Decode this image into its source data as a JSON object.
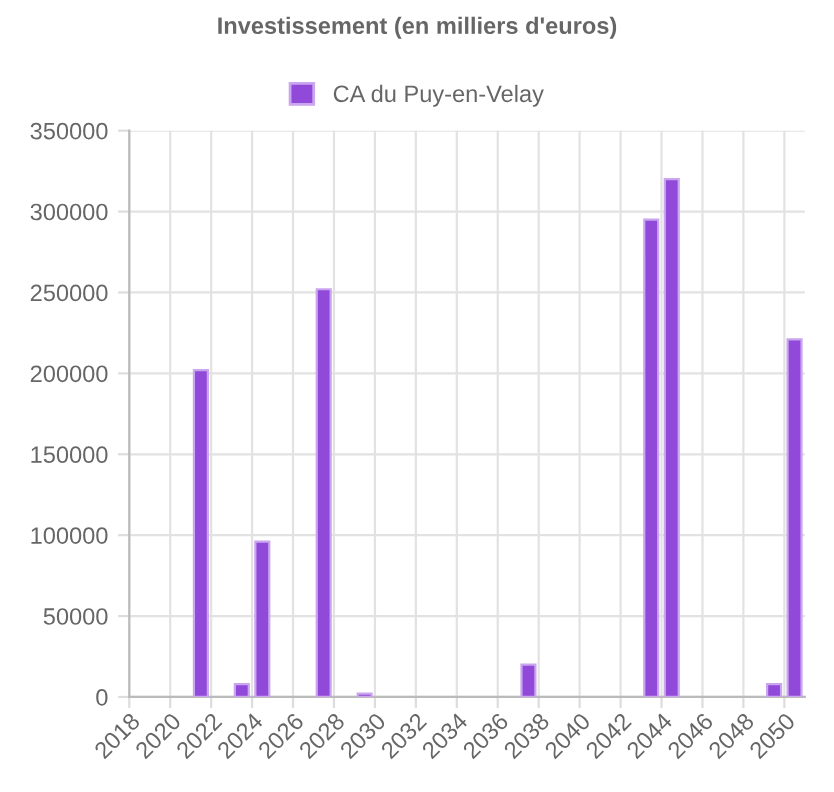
{
  "chart_data": {
    "type": "bar",
    "title": "Investissement (en milliers d'euros)",
    "x": [
      "2021-07-02",
      "2023-07-02",
      "2024-07-02",
      "2027-07-02",
      "2029-07-02",
      "2037-07-02",
      "2043-07-02",
      "2044-07-02",
      "2049-07-02",
      "2050-07-02"
    ],
    "series": [
      {
        "name": "CA du Puy-en-Velay",
        "color": "#9149d9",
        "values": [
          202000,
          8000,
          96000,
          252000,
          2000,
          20000,
          295000,
          320000,
          8000,
          221000
        ]
      }
    ],
    "xlim": [
      "2018",
      "2051"
    ],
    "xticks": [
      "2018",
      "2020",
      "2022",
      "2024",
      "2026",
      "2028",
      "2030",
      "2032",
      "2034",
      "2036",
      "2038",
      "2040",
      "2042",
      "2044",
      "2046",
      "2048",
      "2050"
    ],
    "ylim": [
      0,
      350000
    ],
    "yticks": [
      0,
      50000,
      100000,
      150000,
      200000,
      250000,
      300000,
      350000
    ],
    "grid": true,
    "legend": "top"
  }
}
